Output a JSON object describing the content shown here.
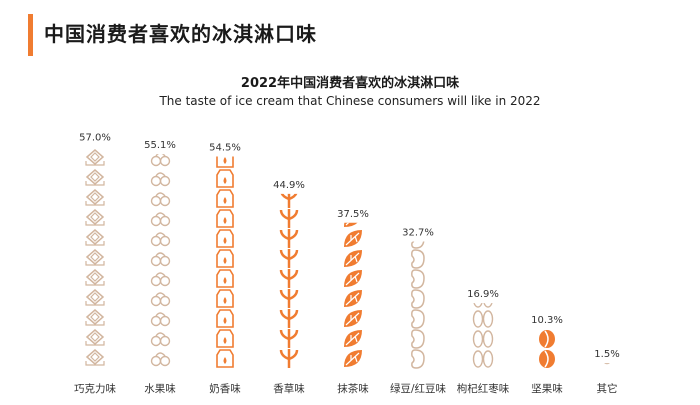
{
  "header": {
    "title": "中国消费者喜欢的冰淇淋口味",
    "accent_color": "#f07c31"
  },
  "colors": {
    "light": "#d2b69f",
    "orange": "#f07c31",
    "label_text": "#333333"
  },
  "chart_data": {
    "type": "bar",
    "title": "2022年中国消费者喜欢的冰淇淋口味",
    "subtitle": "The taste of ice cream that Chinese consumers will like in 2022",
    "categories": [
      "巧克力味",
      "水果味",
      "奶香味",
      "香草味",
      "抹茶味",
      "绿豆/红豆味",
      "枸杞红枣味",
      "坚果味",
      "其它"
    ],
    "values": [
      57.0,
      55.1,
      54.5,
      44.9,
      37.5,
      32.7,
      16.9,
      10.3,
      1.5
    ],
    "value_labels": [
      "57.0%",
      "55.1%",
      "54.5%",
      "44.9%",
      "37.5%",
      "32.7%",
      "16.9%",
      "10.3%",
      "1.5%"
    ],
    "icons": [
      "chocolate-icon",
      "fruit-icon",
      "milk-icon",
      "vanilla-icon",
      "matcha-leaf-icon",
      "bean-icon",
      "jujube-icon",
      "nut-icon",
      "other-icon"
    ],
    "icon_colors": [
      "light",
      "light",
      "orange",
      "orange",
      "orange",
      "light",
      "light",
      "orange",
      "light"
    ],
    "unit": "%",
    "ylim": [
      0,
      60
    ],
    "grid": false,
    "legend": "none"
  }
}
